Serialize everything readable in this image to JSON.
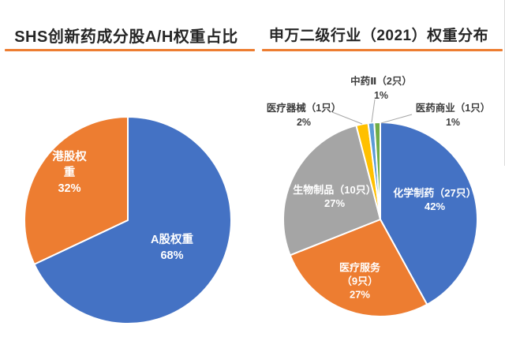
{
  "colors": {
    "accent_underline": "#ED7D31",
    "title_text": "#262626",
    "inner_label_text": "#ffffff",
    "outer_label_text": "#3d3d3d",
    "leader_line": "#a6a6a6",
    "background": "#ffffff"
  },
  "chart_data": [
    {
      "type": "pie",
      "title": "SHS创新药成分股A/H权重占比",
      "start_angle_deg": 0,
      "direction": "clockwise",
      "legend": "none",
      "data_labels": "name + percent inside slices",
      "slices": [
        {
          "id": "a-share",
          "label": "A股权重",
          "value": 68,
          "pct": "68%",
          "color": "#4472C4",
          "label_placement": "inside"
        },
        {
          "id": "hk-share",
          "label": "港股权重",
          "value": 32,
          "pct": "32%",
          "color": "#ED7D31",
          "label_placement": "inside"
        }
      ]
    },
    {
      "type": "pie",
      "title": "申万二级行业（2021）权重分布",
      "start_angle_deg": 0,
      "direction": "clockwise",
      "legend": "none",
      "data_labels": "name + stock count + percent; small slices labeled outside with leader lines",
      "slices": [
        {
          "id": "chemical-pharma",
          "name": "化学制药",
          "count_label": "（27只）",
          "label": "化学制药（27只）",
          "value": 42,
          "pct": "42%",
          "color": "#4472C4",
          "label_placement": "inside"
        },
        {
          "id": "medical-services",
          "name": "医疗服务",
          "count_label": "（9只）",
          "label": "医疗服务（9只）",
          "value": 27,
          "pct": "27%",
          "color": "#ED7D31",
          "label_placement": "inside"
        },
        {
          "id": "biologics",
          "name": "生物制品",
          "count_label": "（10只）",
          "label": "生物制品（10只）",
          "value": 27,
          "pct": "27%",
          "color": "#A5A5A5",
          "label_placement": "inside"
        },
        {
          "id": "medical-devices",
          "name": "医疗器械",
          "count_label": "（1只）",
          "label": "医疗器械（1只）",
          "value": 2,
          "pct": "2%",
          "color": "#FFC000",
          "label_placement": "outside"
        },
        {
          "id": "tcm-ii",
          "name": "中药Ⅱ",
          "count_label": "（2只）",
          "label": "中药Ⅱ（2只）",
          "value": 1,
          "pct": "1%",
          "color": "#5B9BD5",
          "label_placement": "outside"
        },
        {
          "id": "pharma-commerce",
          "name": "医药商业",
          "count_label": "（1只）",
          "label": "医药商业（1只）",
          "value": 1,
          "pct": "1%",
          "color": "#70AD47",
          "label_placement": "outside"
        }
      ]
    }
  ]
}
